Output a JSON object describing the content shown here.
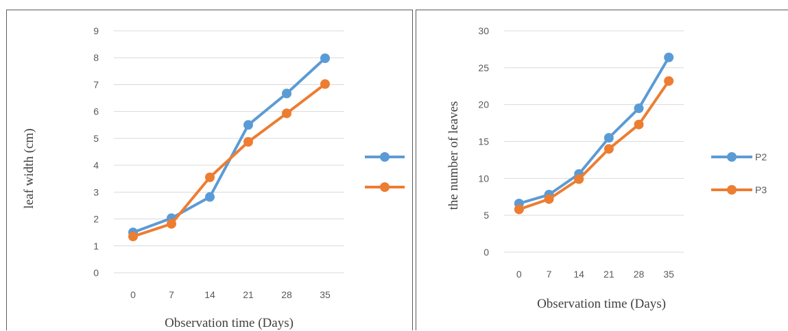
{
  "chart_data": [
    {
      "type": "line",
      "title": "",
      "xlabel": "Observation time (Days)",
      "ylabel": "leaf width (cm)",
      "categories": [
        "0",
        "7",
        "14",
        "21",
        "28",
        "35"
      ],
      "ylim": [
        0,
        9
      ],
      "yticks": [
        0,
        1,
        2,
        3,
        4,
        5,
        6,
        7,
        8,
        9
      ],
      "grid": true,
      "legend": "right",
      "series": [
        {
          "name": "",
          "color": "#5b9bd5",
          "values": [
            1.5,
            2.03,
            2.82,
            5.5,
            6.67,
            7.98
          ]
        },
        {
          "name": "",
          "color": "#ed7d31",
          "values": [
            1.35,
            1.82,
            3.55,
            4.87,
            5.93,
            7.02
          ]
        }
      ]
    },
    {
      "type": "line",
      "title": "",
      "xlabel": "Observation time (Days)",
      "ylabel": "the number of leaves",
      "categories": [
        "0",
        "7",
        "14",
        "21",
        "28",
        "35"
      ],
      "ylim": [
        0,
        30
      ],
      "yticks": [
        0,
        5,
        10,
        15,
        20,
        25,
        30
      ],
      "grid": true,
      "legend": "right",
      "series": [
        {
          "name": "P2",
          "color": "#5b9bd5",
          "values": [
            6.6,
            7.8,
            10.6,
            15.5,
            19.5,
            26.4
          ]
        },
        {
          "name": "P3",
          "color": "#ed7d31",
          "values": [
            5.8,
            7.2,
            9.9,
            14.0,
            17.3,
            23.2
          ]
        }
      ]
    }
  ]
}
